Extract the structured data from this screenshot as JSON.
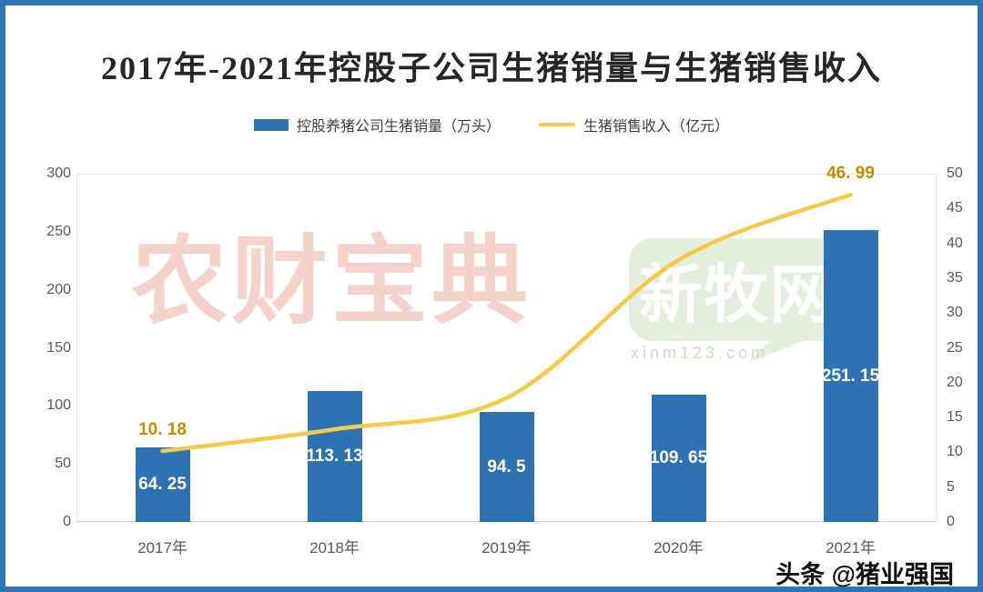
{
  "title": "2017年-2021年控股子公司生猪销量与生猪销售收入",
  "legend": {
    "items": [
      {
        "label": "控股养猪公司生猪销量（万头）",
        "swatch": "bar-swatch"
      },
      {
        "label": "生猪销售收入（亿元）",
        "swatch": "line-swatch"
      }
    ]
  },
  "watermarks": {
    "pink_text": "农财宝典",
    "bubble_text": "新牧网",
    "bubble_url": "xinm123.com",
    "footer": "头条 @猪业强国"
  },
  "colors": {
    "bar": "#2D72B2",
    "line": "#F5CB45",
    "line_label": "#BF8F00",
    "bar_label": "#FFFFFF",
    "axis_text": "#595959",
    "legend_text": "#3F3F3F",
    "title_text": "#262626",
    "page_border": "#2E75B6",
    "plot_border": "#E8E8E8",
    "watermark_pink": "#F4D3CD",
    "watermark_green_bg": "#E3EEDD",
    "watermark_green_url": "#C9DEC2",
    "footer_text": "#111111"
  },
  "chart_data": {
    "type": "bar+line",
    "title": "2017年-2021年控股子公司生猪销量与生猪销售收入",
    "categories": [
      "2017年",
      "2018年",
      "2019年",
      "2020年",
      "2021年"
    ],
    "series": [
      {
        "name": "控股养猪公司生猪销量（万头）",
        "type": "bar",
        "axis": "left",
        "values": [
          64.25,
          113.13,
          94.5,
          109.65,
          251.15
        ],
        "labels": [
          "64. 25",
          "113. 13",
          "94. 5",
          "109. 65",
          "251. 15"
        ]
      },
      {
        "name": "生猪销售收入（亿元）",
        "type": "line",
        "axis": "right",
        "values": [
          10.18,
          13.3,
          17.8,
          37.6,
          46.99
        ],
        "point_labels": [
          "10. 18",
          "",
          "",
          "",
          "46. 99"
        ]
      }
    ],
    "left_axis": {
      "min": 0,
      "max": 300,
      "step": 50
    },
    "right_axis": {
      "min": 0,
      "max": 50,
      "step": 5
    },
    "legend_position": "top",
    "grid": false
  }
}
